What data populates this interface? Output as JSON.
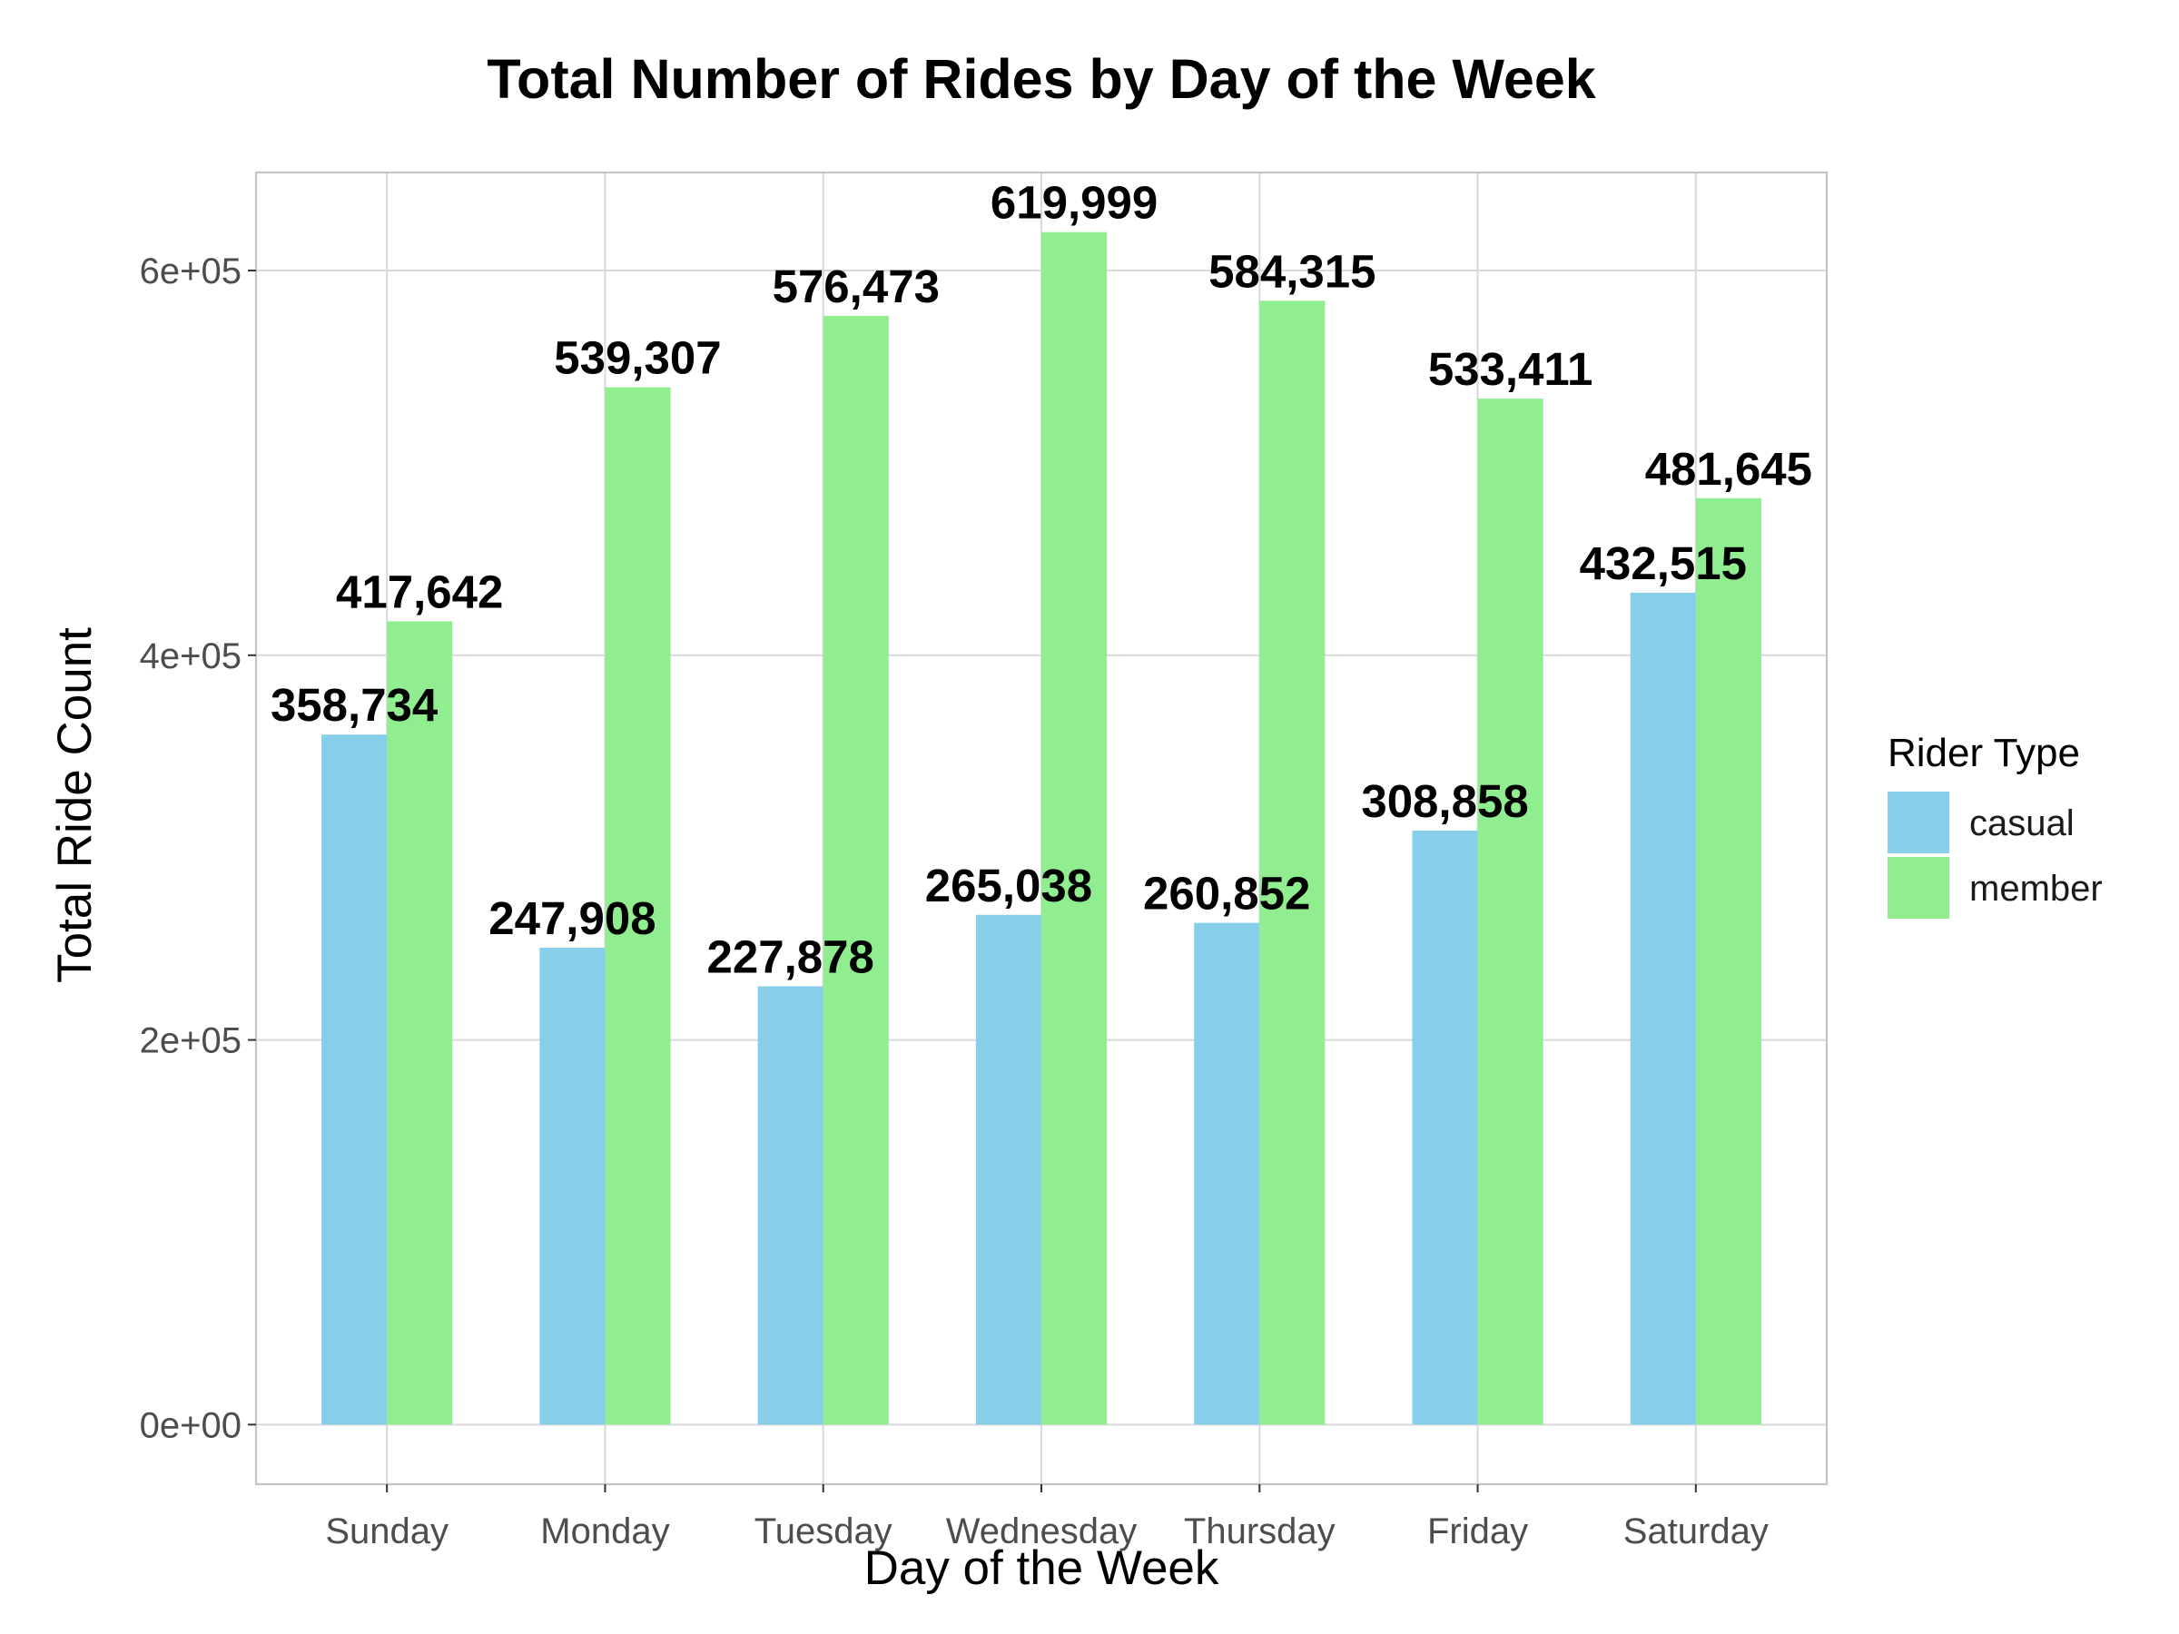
{
  "chart_data": {
    "type": "bar",
    "title": "Total Number of Rides by Day of the Week",
    "xlabel": "Day of the Week",
    "ylabel": "Total Ride Count",
    "categories": [
      "Sunday",
      "Monday",
      "Tuesday",
      "Wednesday",
      "Thursday",
      "Friday",
      "Saturday"
    ],
    "series": [
      {
        "name": "casual",
        "color": "#87CEEB",
        "values": [
          358734,
          247908,
          227878,
          265038,
          260852,
          308858,
          432515
        ],
        "labels": [
          "358,734",
          "247,908",
          "227,878",
          "265,038",
          "260,852",
          "308,858",
          "432,515"
        ]
      },
      {
        "name": "member",
        "color": "#90EE90",
        "values": [
          417642,
          539307,
          576473,
          619999,
          584315,
          533411,
          481645
        ],
        "labels": [
          "417,642",
          "539,307",
          "576,473",
          "619,999",
          "584,315",
          "533,411",
          "481,645"
        ]
      }
    ],
    "ylim": [
      -30999.95,
      650998.95
    ],
    "yticks": [
      0,
      200000,
      400000,
      600000
    ],
    "ytick_labels": [
      "0e+00",
      "2e+05",
      "4e+05",
      "6e+05"
    ],
    "grid": true,
    "legend": {
      "title": "Rider Type",
      "placement": "right"
    }
  }
}
